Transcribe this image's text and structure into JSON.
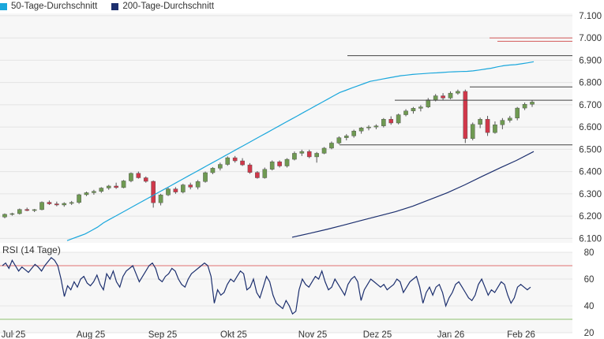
{
  "legend": [
    {
      "label": "50-Tage-Durchschnitt",
      "color": "#1aa7dc"
    },
    {
      "label": "200-Tage-Durchschnitt",
      "color": "#1c2f6e"
    }
  ],
  "rsi_title": "RSI (14 Tage)",
  "colors": {
    "up": "#6f9a52",
    "down": "#d0384a",
    "ma50": "#1aa7dc",
    "ma200": "#1c2f6e",
    "rsi": "#1c2f6e",
    "grid": "#e4e4e4",
    "panel": "#f7f7f7",
    "overbought": "#e27171",
    "oversold": "#8cc26f"
  },
  "chart_data": [
    {
      "type": "candlestick",
      "x_ticks": [
        "Jul 25",
        "Aug 25",
        "Sep 25",
        "Okt 25",
        "Nov 25",
        "Dez 25",
        "Jan 26",
        "Feb 26"
      ],
      "y_ticks": [
        "7.100",
        "7.000",
        "6.900",
        "6.800",
        "6.700",
        "6.600",
        "6.500",
        "6.400",
        "6.300",
        "6.200",
        "6.100"
      ],
      "ylim": [
        6080,
        7110
      ],
      "grid": true,
      "series": [
        {
          "name": "50-Tage-Durchschnitt",
          "values": [
            6090,
            6100,
            6110,
            6120,
            6135,
            6150,
            6170,
            6185,
            6200,
            6215,
            6230,
            6245,
            6260,
            6275,
            6290,
            6305,
            6320,
            6335,
            6350,
            6365,
            6380,
            6395,
            6410,
            6425,
            6440,
            6455,
            6470,
            6485,
            6500,
            6515,
            6530,
            6545,
            6560,
            6575,
            6590,
            6605,
            6620,
            6635,
            6650,
            6665,
            6680,
            6695,
            6710,
            6725,
            6740,
            6755,
            6765,
            6775,
            6785,
            6795,
            6805,
            6810,
            6815,
            6820,
            6825,
            6830,
            6833,
            6836,
            6838,
            6840,
            6842,
            6843,
            6845,
            6847,
            6848,
            6849,
            6850,
            6852,
            6856,
            6860,
            6864,
            6870,
            6875,
            6878,
            6880,
            6884,
            6888,
            6893
          ]
        },
        {
          "name": "200-Tage-Durchschnitt",
          "values": [
            6105,
            6122,
            6140,
            6160,
            6180,
            6200,
            6220,
            6245,
            6275,
            6305,
            6340,
            6378,
            6415,
            6450,
            6490
          ]
        }
      ],
      "ohlc": [
        [
          6196,
          6212,
          6190,
          6208
        ],
        [
          6208,
          6215,
          6202,
          6211
        ],
        [
          6211,
          6234,
          6207,
          6230
        ],
        [
          6230,
          6238,
          6222,
          6225
        ],
        [
          6225,
          6232,
          6218,
          6229
        ],
        [
          6229,
          6266,
          6226,
          6262
        ],
        [
          6262,
          6270,
          6250,
          6255
        ],
        [
          6255,
          6265,
          6244,
          6250
        ],
        [
          6250,
          6262,
          6242,
          6257
        ],
        [
          6257,
          6268,
          6250,
          6261
        ],
        [
          6261,
          6300,
          6255,
          6296
        ],
        [
          6296,
          6310,
          6290,
          6305
        ],
        [
          6305,
          6318,
          6296,
          6311
        ],
        [
          6311,
          6330,
          6304,
          6326
        ],
        [
          6326,
          6340,
          6318,
          6335
        ],
        [
          6335,
          6350,
          6322,
          6328
        ],
        [
          6328,
          6362,
          6325,
          6358
        ],
        [
          6358,
          6396,
          6352,
          6392
        ],
        [
          6392,
          6400,
          6368,
          6372
        ],
        [
          6372,
          6378,
          6350,
          6356
        ],
        [
          6356,
          6360,
          6238,
          6260
        ],
        [
          6260,
          6300,
          6248,
          6295
        ],
        [
          6295,
          6328,
          6290,
          6322
        ],
        [
          6322,
          6330,
          6300,
          6308
        ],
        [
          6308,
          6345,
          6302,
          6340
        ],
        [
          6340,
          6350,
          6320,
          6330
        ],
        [
          6330,
          6362,
          6320,
          6355
        ],
        [
          6355,
          6400,
          6350,
          6395
        ],
        [
          6395,
          6420,
          6388,
          6415
        ],
        [
          6415,
          6440,
          6405,
          6432
        ],
        [
          6432,
          6468,
          6426,
          6462
        ],
        [
          6462,
          6470,
          6440,
          6448
        ],
        [
          6448,
          6460,
          6425,
          6430
        ],
        [
          6430,
          6438,
          6390,
          6396
        ],
        [
          6396,
          6402,
          6368,
          6372
        ],
        [
          6372,
          6418,
          6368,
          6410
        ],
        [
          6410,
          6450,
          6405,
          6444
        ],
        [
          6444,
          6450,
          6418,
          6425
        ],
        [
          6425,
          6460,
          6418,
          6455
        ],
        [
          6455,
          6490,
          6450,
          6482
        ],
        [
          6482,
          6498,
          6470,
          6490
        ],
        [
          6490,
          6498,
          6460,
          6466
        ],
        [
          6466,
          6488,
          6440,
          6482
        ],
        [
          6482,
          6510,
          6478,
          6505
        ],
        [
          6505,
          6535,
          6500,
          6528
        ],
        [
          6528,
          6558,
          6522,
          6552
        ],
        [
          6552,
          6568,
          6540,
          6560
        ],
        [
          6560,
          6588,
          6552,
          6582
        ],
        [
          6582,
          6600,
          6570,
          6596
        ],
        [
          6596,
          6608,
          6585,
          6600
        ],
        [
          6600,
          6612,
          6590,
          6605
        ],
        [
          6605,
          6640,
          6598,
          6635
        ],
        [
          6635,
          6648,
          6610,
          6618
        ],
        [
          6618,
          6660,
          6612,
          6655
        ],
        [
          6655,
          6680,
          6648,
          6672
        ],
        [
          6672,
          6690,
          6660,
          6684
        ],
        [
          6684,
          6698,
          6670,
          6690
        ],
        [
          6690,
          6730,
          6685,
          6722
        ],
        [
          6722,
          6748,
          6715,
          6740
        ],
        [
          6740,
          6752,
          6720,
          6730
        ],
        [
          6730,
          6760,
          6725,
          6752
        ],
        [
          6752,
          6768,
          6745,
          6760
        ],
        [
          6760,
          6768,
          6528,
          6548
        ],
        [
          6548,
          6620,
          6540,
          6612
        ],
        [
          6612,
          6642,
          6595,
          6635
        ],
        [
          6635,
          6650,
          6560,
          6575
        ],
        [
          6575,
          6625,
          6570,
          6610
        ],
        [
          6610,
          6640,
          6590,
          6630
        ],
        [
          6630,
          6650,
          6620,
          6640
        ],
        [
          6640,
          6690,
          6630,
          6685
        ],
        [
          6685,
          6710,
          6676,
          6702
        ],
        [
          6702,
          6720,
          6690,
          6712
        ]
      ]
    },
    {
      "type": "line",
      "title": "RSI (14 Tage)",
      "y_ticks": [
        "80",
        "60",
        "40",
        "20"
      ],
      "ylim": [
        20,
        80
      ],
      "x_ticks": [
        "Jul 25",
        "Aug 25",
        "Sep 25",
        "Okt 25",
        "Nov 25",
        "Dez 25",
        "Jan 26",
        "Feb 26"
      ],
      "reference_lines": [
        70,
        30
      ],
      "series": [
        {
          "values": [
            70,
            72,
            68,
            74,
            70,
            66,
            69,
            67,
            65,
            68,
            71,
            69,
            66,
            70,
            73,
            76,
            74,
            70,
            60,
            47,
            55,
            52,
            58,
            54,
            60,
            62,
            57,
            55,
            58,
            63,
            56,
            52,
            64,
            60,
            66,
            58,
            54,
            62,
            66,
            68,
            70,
            64,
            58,
            62,
            66,
            70,
            72,
            68,
            60,
            58,
            62,
            64,
            68,
            66,
            60,
            56,
            54,
            60,
            64,
            66,
            68,
            70,
            72,
            70,
            62,
            42,
            52,
            48,
            50,
            56,
            60,
            58,
            62,
            66,
            64,
            52,
            54,
            60,
            50,
            46,
            54,
            62,
            58,
            48,
            42,
            40,
            38,
            44,
            40,
            34,
            36,
            52,
            60,
            56,
            54,
            58,
            62,
            60,
            66,
            58,
            52,
            54,
            60,
            56,
            52,
            48,
            56,
            60,
            62,
            58,
            44,
            52,
            56,
            60,
            58,
            56,
            54,
            56,
            52,
            54,
            56,
            60,
            58,
            50,
            54,
            58,
            60,
            62,
            54,
            42,
            50,
            54,
            48,
            54,
            56,
            50,
            40,
            46,
            50,
            56,
            58,
            54,
            50,
            46,
            44,
            48,
            56,
            60,
            54,
            48,
            52,
            50,
            54,
            58,
            56,
            48,
            42,
            46,
            54,
            56,
            54,
            52,
            54
          ]
        }
      ]
    }
  ]
}
